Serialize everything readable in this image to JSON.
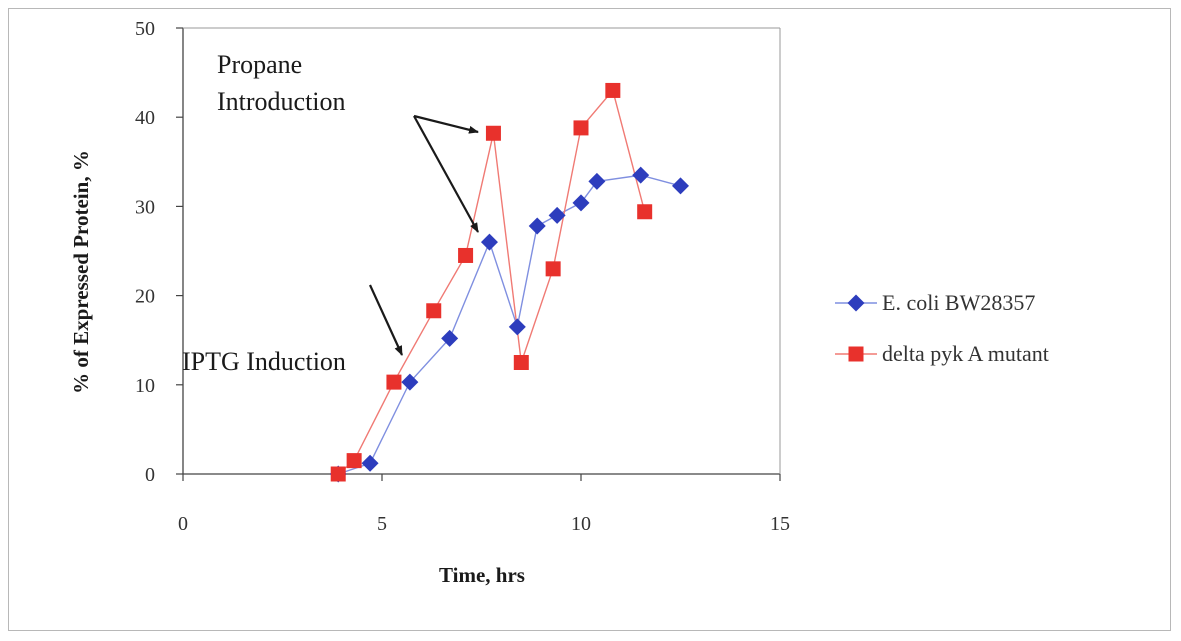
{
  "colors": {
    "series1": "#2d3dbd",
    "series1_line": "#7f8fe0",
    "series2": "#e8312c",
    "series2_line": "#f07a74",
    "axis": "#444444",
    "arrow": "#1a1a1a"
  },
  "chart_data": {
    "type": "line",
    "xlabel": "Time, hrs",
    "ylabel": "% of Expressed Protein, %",
    "xlim": [
      0,
      15
    ],
    "ylim": [
      0,
      50
    ],
    "xticks": [
      "0",
      "5",
      "10",
      "15"
    ],
    "yticks": [
      "0",
      "10",
      "20",
      "30",
      "40",
      "50"
    ],
    "grid": false,
    "legend_position": "right",
    "series": [
      {
        "name": "E. coli BW28357",
        "marker": "diamond",
        "points": [
          [
            3.9,
            0
          ],
          [
            4.7,
            1.2
          ],
          [
            5.7,
            10.3
          ],
          [
            6.7,
            15.2
          ],
          [
            7.7,
            26.0
          ],
          [
            8.4,
            16.5
          ],
          [
            8.9,
            27.8
          ],
          [
            9.4,
            29.0
          ],
          [
            10.0,
            30.4
          ],
          [
            10.4,
            32.8
          ],
          [
            11.5,
            33.5
          ],
          [
            12.5,
            32.3
          ]
        ]
      },
      {
        "name": "delta pyk A mutant",
        "marker": "square",
        "points": [
          [
            3.9,
            0
          ],
          [
            4.3,
            1.5
          ],
          [
            5.3,
            10.3
          ],
          [
            6.3,
            18.3
          ],
          [
            7.1,
            24.5
          ],
          [
            7.8,
            38.2
          ],
          [
            8.5,
            12.5
          ],
          [
            9.3,
            23.0
          ],
          [
            10.0,
            38.8
          ],
          [
            10.8,
            43.0
          ],
          [
            11.6,
            29.4
          ]
        ]
      }
    ],
    "annotations": [
      {
        "text_lines": [
          "Propane",
          "Introduction"
        ]
      },
      {
        "text_lines": [
          "IPTG Induction"
        ]
      }
    ]
  }
}
